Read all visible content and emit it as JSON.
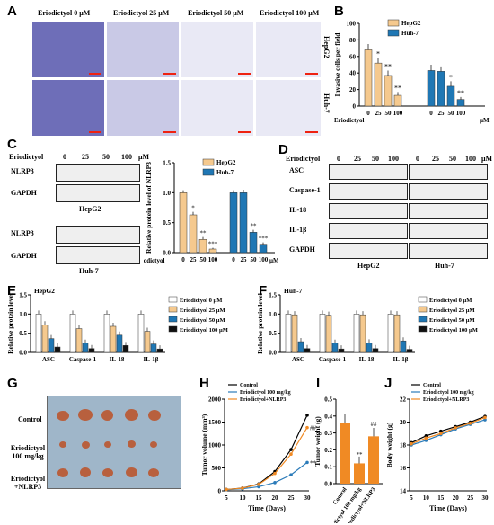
{
  "panels": {
    "A": "A",
    "B": "B",
    "C": "C",
    "D": "D",
    "E": "E",
    "F": "F",
    "G": "G",
    "H": "H",
    "I": "I",
    "J": "J"
  },
  "a": {
    "headers": [
      "Eriodictyol 0 μM",
      "Eriodictyol 25 μM",
      "Eriodictyol 50 μM",
      "Eriodictyol 100 μM"
    ],
    "rows": [
      "HepG2",
      "Huh-7"
    ]
  },
  "common": {
    "eriodictyol": "Eriodictyol",
    "doses": [
      "0",
      "25",
      "50",
      "100"
    ],
    "um": "μM",
    "hepg2": "HepG2",
    "huh7": "Huh-7",
    "sig1": "*",
    "sig2": "**",
    "sig3": "***",
    "sig_hash": "##"
  },
  "c": {
    "nlrp3": "NLRP3",
    "gapdh": "GAPDH"
  },
  "d": {
    "proteins": [
      "ASC",
      "Caspase-1",
      "IL-18",
      "IL-1β",
      "GAPDH"
    ]
  },
  "colors": {
    "c0": "#ffffff",
    "c25": "#f5c98e",
    "c50": "#1f77b4",
    "c100": "#111111",
    "orange": "#f08a24",
    "blue": "#2b7bb9"
  },
  "chart_data": [
    {
      "type": "bar",
      "panel": "B",
      "ylabel": "Invasive cells per field",
      "ylim": [
        0,
        100
      ],
      "yticks": [
        0,
        20,
        40,
        60,
        80,
        100
      ],
      "categories": [
        "0",
        "25",
        "50",
        "100"
      ],
      "series": [
        {
          "name": "HepG2",
          "values": [
            68,
            52,
            37,
            13
          ],
          "err": [
            7,
            6,
            6,
            4
          ]
        },
        {
          "name": "Huh-7",
          "values": [
            43,
            42,
            24,
            8
          ],
          "err": [
            7,
            6,
            6,
            3
          ]
        }
      ],
      "annotations": [
        "*",
        "**",
        "*",
        "**"
      ]
    },
    {
      "type": "bar",
      "panel": "C",
      "ylabel": "Relative protein level of NLRP3",
      "ylim": [
        0,
        1.5
      ],
      "yticks": [
        0.0,
        0.5,
        1.0,
        1.5
      ],
      "categories": [
        "0",
        "25",
        "50",
        "100"
      ],
      "series": [
        {
          "name": "HepG2",
          "values": [
            1.0,
            0.63,
            0.22,
            0.06
          ],
          "err": [
            0.04,
            0.05,
            0.04,
            0.02
          ]
        },
        {
          "name": "Huh-7",
          "values": [
            1.0,
            1.0,
            0.34,
            0.14
          ],
          "err": [
            0.04,
            0.05,
            0.04,
            0.03
          ]
        }
      ],
      "annotations": [
        "*",
        "**",
        "***",
        "**",
        "***"
      ]
    },
    {
      "type": "bar",
      "panel": "E",
      "title": "HepG2",
      "ylabel": "Relative protein level",
      "ylim": [
        0,
        1.5
      ],
      "yticks": [
        0.0,
        0.5,
        1.0,
        1.5
      ],
      "categories": [
        "ASC",
        "Caspase-1",
        "IL-18",
        "IL-1β"
      ],
      "series": [
        {
          "name": "Eriodictyol 0 μM",
          "values": [
            1.0,
            1.0,
            1.0,
            1.0
          ]
        },
        {
          "name": "Eriodictyol 25 μM",
          "values": [
            0.72,
            0.62,
            0.68,
            0.55
          ]
        },
        {
          "name": "Eriodictyol 50 μM",
          "values": [
            0.36,
            0.24,
            0.45,
            0.22
          ]
        },
        {
          "name": "Eriodictyol 100 μM",
          "values": [
            0.14,
            0.1,
            0.18,
            0.09
          ]
        }
      ]
    },
    {
      "type": "bar",
      "panel": "F",
      "title": "Huh-7",
      "ylabel": "Relative protein level",
      "ylim": [
        0,
        1.5
      ],
      "yticks": [
        0.0,
        0.5,
        1.0,
        1.5
      ],
      "categories": [
        "ASC",
        "Caspase-1",
        "IL-18",
        "IL-1β"
      ],
      "series": [
        {
          "name": "Eriodictyol 0 μM",
          "values": [
            1.0,
            1.0,
            1.0,
            1.0
          ]
        },
        {
          "name": "Eriodictyol 25 μM",
          "values": [
            0.98,
            0.97,
            0.98,
            0.98
          ]
        },
        {
          "name": "Eriodictyol 50 μM",
          "values": [
            0.28,
            0.24,
            0.25,
            0.3
          ]
        },
        {
          "name": "Eriodictyol 100 μM",
          "values": [
            0.1,
            0.09,
            0.1,
            0.08
          ]
        }
      ]
    },
    {
      "type": "line",
      "panel": "H",
      "xlabel": "Time (Days)",
      "ylabel": "Tumor volume (mm³)",
      "ylim": [
        0,
        2000
      ],
      "yticks": [
        0,
        500,
        1000,
        1500,
        2000
      ],
      "x": [
        5,
        10,
        15,
        20,
        25,
        30
      ],
      "series": [
        {
          "name": "Control",
          "values": [
            30,
            60,
            150,
            420,
            900,
            1650
          ]
        },
        {
          "name": "Eriodictyol 100 mg/kg",
          "values": [
            25,
            45,
            90,
            180,
            350,
            620
          ]
        },
        {
          "name": "Eriodictyol+NLRP3",
          "values": [
            30,
            58,
            140,
            380,
            800,
            1380
          ]
        }
      ]
    },
    {
      "type": "bar",
      "panel": "I",
      "ylabel": "Tumor weight (g)",
      "ylim": [
        0,
        0.5
      ],
      "yticks": [
        0.0,
        0.1,
        0.2,
        0.3,
        0.4,
        0.5
      ],
      "categories": [
        "Control",
        "Eriodictyol 100 mg/kg",
        "Eriodictyol+NLRP3"
      ],
      "values": [
        0.36,
        0.12,
        0.28
      ],
      "err": [
        0.05,
        0.04,
        0.05
      ]
    },
    {
      "type": "line",
      "panel": "J",
      "xlabel": "Time (Days)",
      "ylabel": "Body weight (g)",
      "ylim": [
        14,
        22
      ],
      "yticks": [
        14,
        16,
        18,
        20,
        22
      ],
      "x": [
        5,
        10,
        15,
        20,
        25,
        30
      ],
      "series": [
        {
          "name": "Control",
          "values": [
            18.2,
            18.8,
            19.2,
            19.6,
            20.0,
            20.5
          ]
        },
        {
          "name": "Eriodictyol 100 mg/kg",
          "values": [
            18.0,
            18.4,
            18.9,
            19.4,
            19.8,
            20.2
          ]
        },
        {
          "name": "Eriodictyol+NLRP3",
          "values": [
            18.1,
            18.6,
            19.0,
            19.5,
            19.9,
            20.4
          ]
        }
      ]
    }
  ],
  "g": {
    "rows": [
      "Control",
      "Eriodictyol 100 mg/kg",
      "Eriodictyol +NLRP3"
    ]
  }
}
